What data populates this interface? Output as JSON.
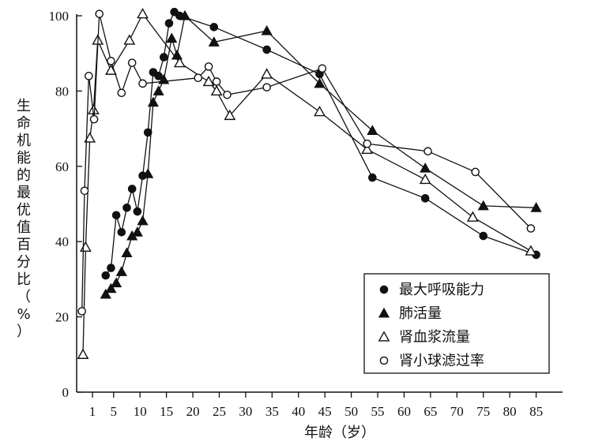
{
  "chart_data": {
    "type": "line",
    "xlabel": "年龄（岁）",
    "ylabel": "生命机能的最优值百分比（%）",
    "xlim": [
      -2,
      90
    ],
    "ylim": [
      0,
      100
    ],
    "xticks": [
      1,
      5,
      10,
      15,
      20,
      25,
      30,
      35,
      40,
      45,
      50,
      55,
      60,
      65,
      70,
      75,
      80,
      85
    ],
    "yticks": [
      0,
      20,
      40,
      60,
      80,
      100
    ],
    "grid": false,
    "legend_position": "bottom-right",
    "series": [
      {
        "name": "最大呼吸能力",
        "marker": "filled-circle",
        "points": [
          [
            3.5,
            31
          ],
          [
            4.5,
            33
          ],
          [
            5.5,
            47
          ],
          [
            6.5,
            42.5
          ],
          [
            7.5,
            49
          ],
          [
            8.5,
            54
          ],
          [
            9.5,
            48
          ],
          [
            10.5,
            57.5
          ],
          [
            11.5,
            69
          ],
          [
            12.5,
            85
          ],
          [
            13.5,
            84
          ],
          [
            14.5,
            89
          ],
          [
            15.5,
            98
          ],
          [
            16.5,
            101
          ],
          [
            17.5,
            100
          ],
          [
            24,
            97
          ],
          [
            34,
            91
          ],
          [
            44,
            84.5
          ],
          [
            54,
            57
          ],
          [
            64,
            51.5
          ],
          [
            75,
            41.5
          ],
          [
            85,
            36.5
          ]
        ]
      },
      {
        "name": "肺活量",
        "marker": "filled-triangle",
        "points": [
          [
            3.5,
            26
          ],
          [
            4.5,
            27.5
          ],
          [
            5.5,
            29
          ],
          [
            6.5,
            32
          ],
          [
            7.5,
            37
          ],
          [
            8.5,
            41.5
          ],
          [
            9.5,
            42.5
          ],
          [
            10.5,
            45.5
          ],
          [
            11.5,
            58
          ],
          [
            12.5,
            77
          ],
          [
            13.5,
            80
          ],
          [
            14.5,
            83
          ],
          [
            16,
            94
          ],
          [
            17,
            89.5
          ],
          [
            18.5,
            100
          ],
          [
            24,
            93
          ],
          [
            34,
            96
          ],
          [
            44,
            82
          ],
          [
            54,
            69.5
          ],
          [
            64,
            59.5
          ],
          [
            75,
            49.5
          ],
          [
            85,
            49
          ]
        ]
      },
      {
        "name": "肾血浆流量",
        "marker": "open-triangle",
        "points": [
          [
            -0.8,
            10
          ],
          [
            -0.3,
            38.5
          ],
          [
            0.5,
            67.5
          ],
          [
            1.2,
            75
          ],
          [
            2,
            93.5
          ],
          [
            4.5,
            85.5
          ],
          [
            8,
            93.5
          ],
          [
            10.5,
            100.5
          ],
          [
            17.5,
            87.5
          ],
          [
            23,
            82.5
          ],
          [
            24.5,
            80
          ],
          [
            27,
            73.5
          ],
          [
            34,
            84.5
          ],
          [
            44,
            74.5
          ],
          [
            53,
            64.5
          ],
          [
            64,
            56.5
          ],
          [
            73,
            46.5
          ],
          [
            84,
            37.5
          ]
        ]
      },
      {
        "name": "肾小球滤过率",
        "marker": "open-circle",
        "points": [
          [
            -1,
            21.5
          ],
          [
            -0.5,
            53.5
          ],
          [
            0.3,
            84
          ],
          [
            1.3,
            72.5
          ],
          [
            2.3,
            100.5
          ],
          [
            4.5,
            88
          ],
          [
            6.5,
            79.5
          ],
          [
            8.5,
            87.5
          ],
          [
            10.5,
            82
          ],
          [
            21,
            83.5
          ],
          [
            23,
            86.5
          ],
          [
            24.5,
            82.5
          ],
          [
            26.5,
            79
          ],
          [
            34,
            81
          ],
          [
            44.5,
            86
          ],
          [
            53,
            66
          ],
          [
            64.5,
            64
          ],
          [
            73.5,
            58.5
          ],
          [
            84,
            43.5
          ]
        ]
      }
    ]
  }
}
